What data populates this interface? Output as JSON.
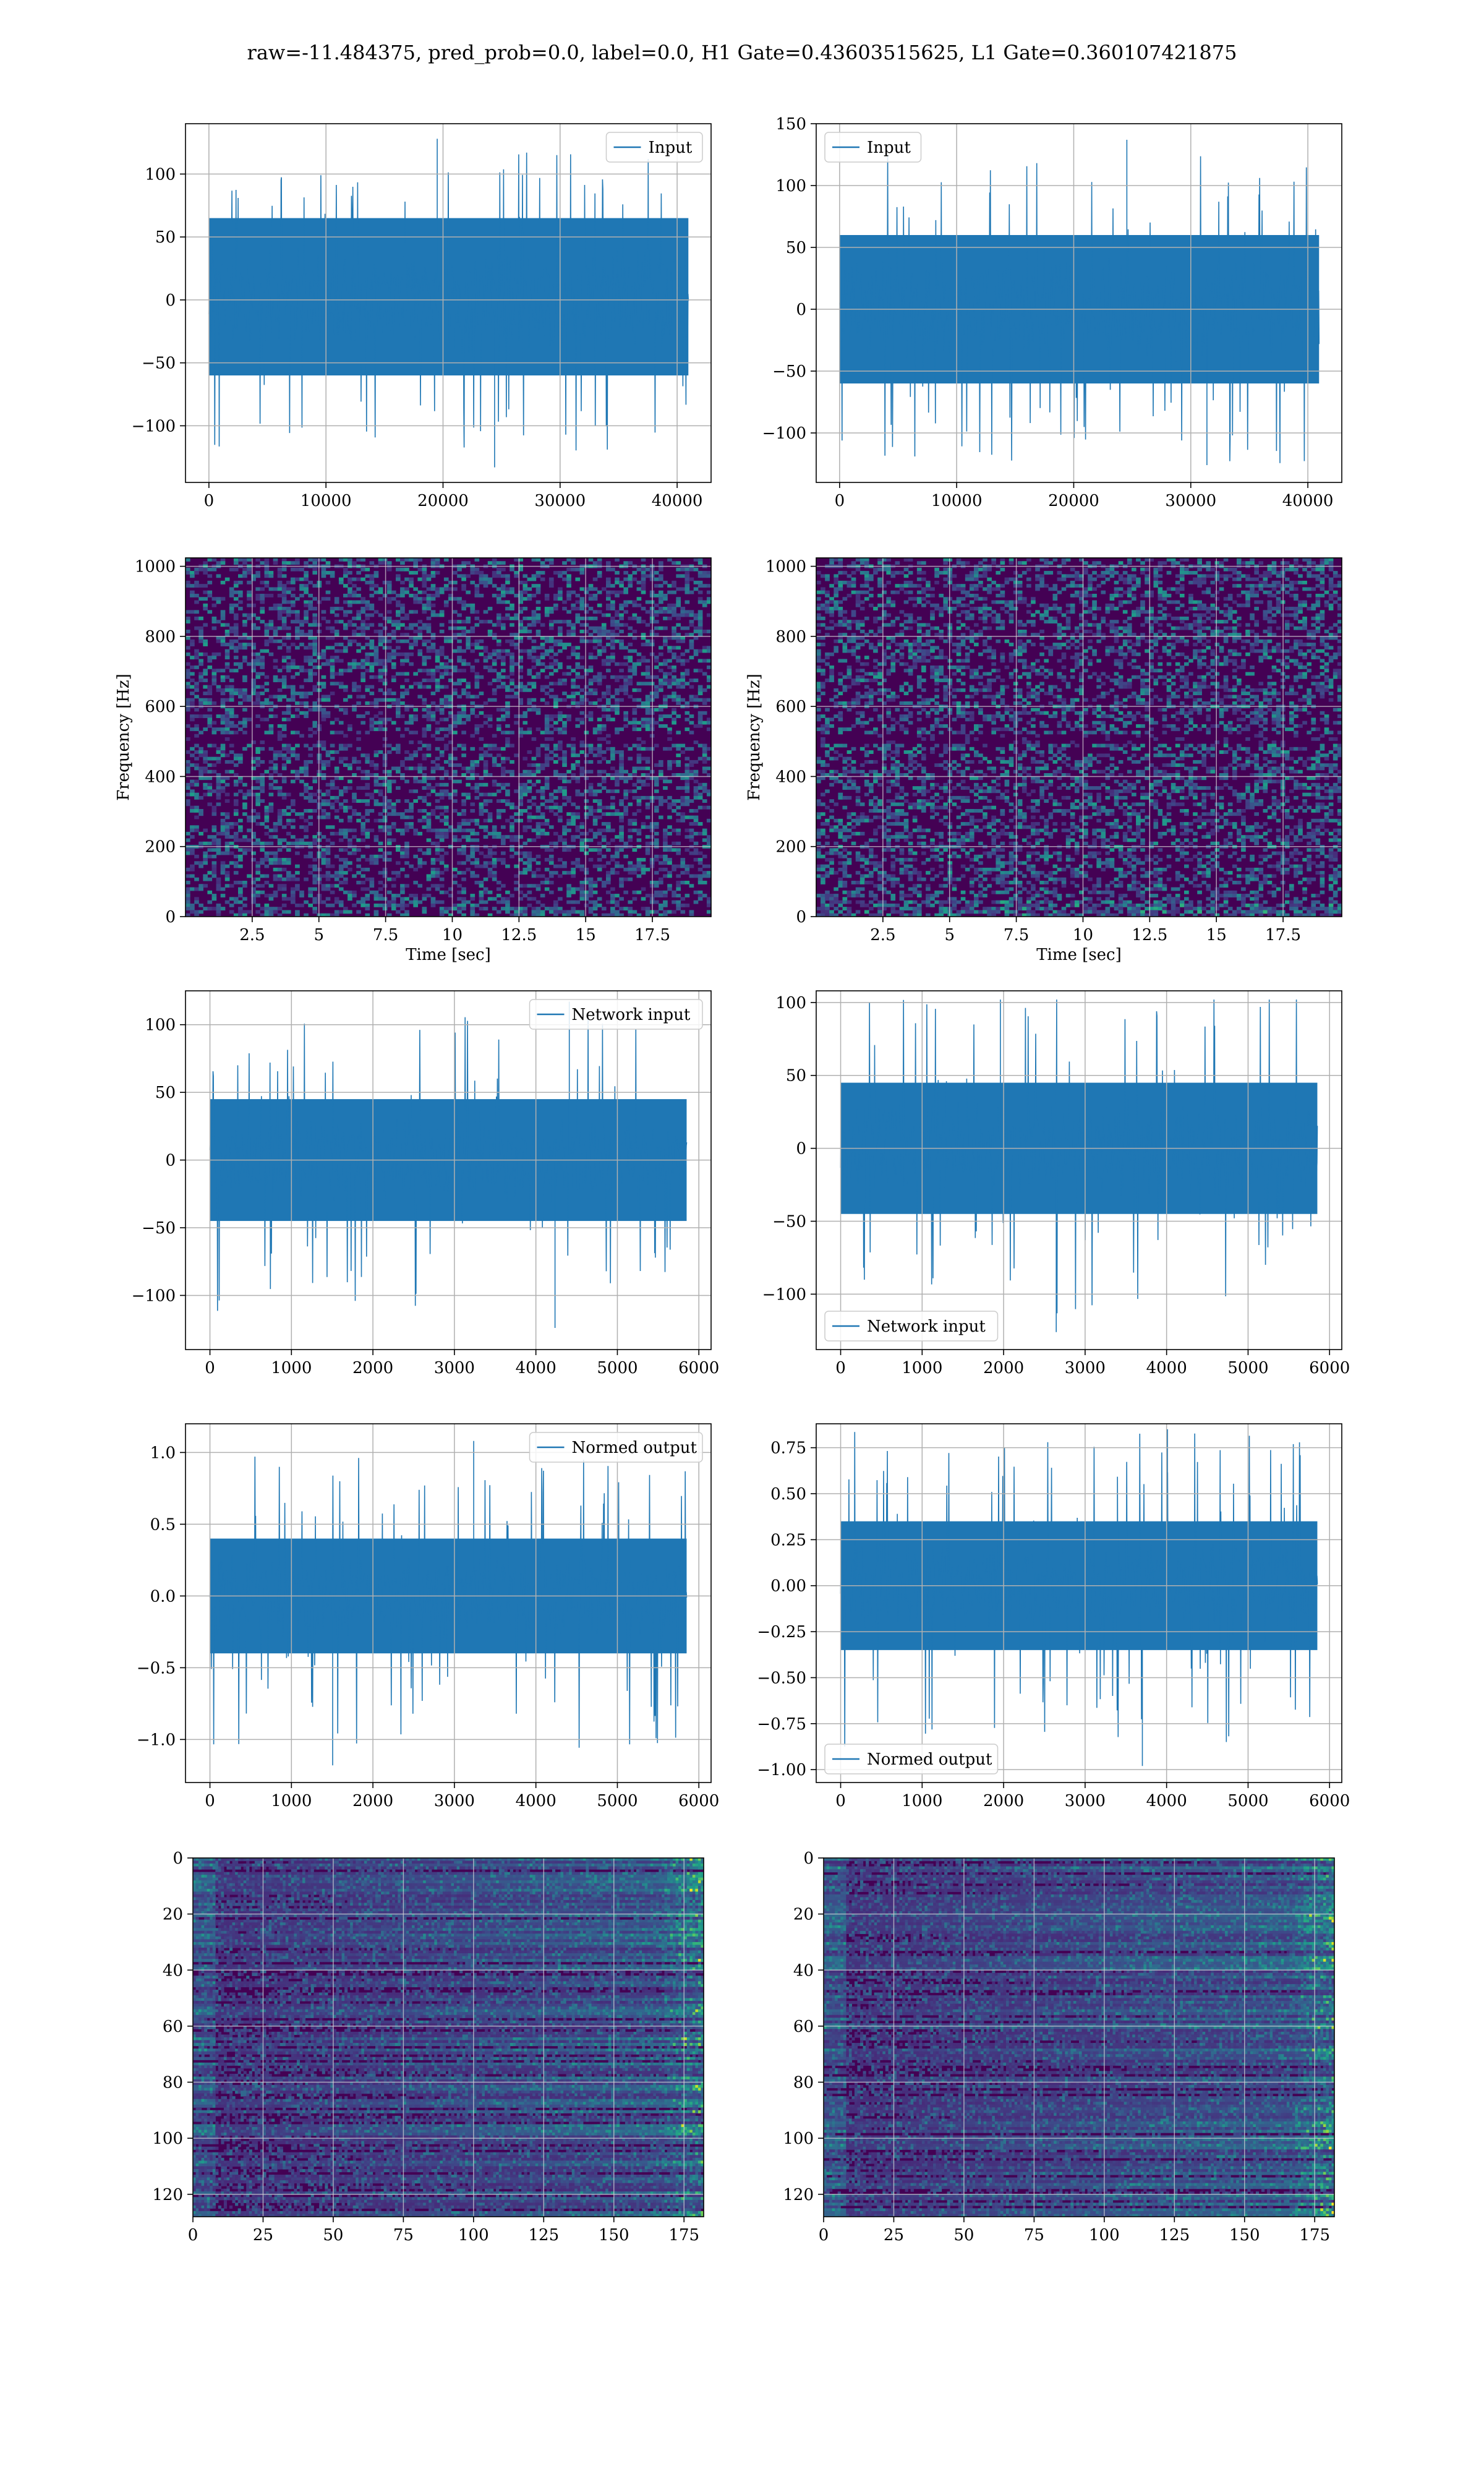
{
  "figure": {
    "title": "raw=-11.484375, pred_prob=0.0, label=0.0, H1 Gate=0.43603515625, L1 Gate=0.360107421875"
  },
  "colors": {
    "line": "#1f77b4",
    "grid": "#b0b0b0",
    "viridis": [
      "#440154",
      "#482878",
      "#3e4989",
      "#31688e",
      "#26828e",
      "#1f9e89",
      "#35b779",
      "#6ece58",
      "#b5de2b",
      "#fde725"
    ]
  },
  "chart_data": [
    {
      "id": "p11",
      "type": "line",
      "title": "",
      "xlabel": "",
      "ylabel": "",
      "xlim": [
        -2000,
        42900
      ],
      "ylim": [
        -145,
        140
      ],
      "xticks": [
        0,
        10000,
        20000,
        30000,
        40000
      ],
      "yticks": [
        -100,
        -50,
        0,
        50,
        100
      ],
      "series": [
        {
          "name": "Input",
          "n_samples": 40960,
          "x_range": [
            0,
            40960
          ],
          "typical_band": [
            -60,
            65
          ],
          "y_min": -133,
          "y_max": 128
        }
      ],
      "legend": "upper right",
      "grid": true
    },
    {
      "id": "p12",
      "type": "line",
      "title": "",
      "xlabel": "",
      "ylabel": "",
      "xlim": [
        -2000,
        42900
      ],
      "ylim": [
        -140,
        150
      ],
      "xticks": [
        0,
        10000,
        20000,
        30000,
        40000
      ],
      "yticks": [
        -100,
        -50,
        0,
        50,
        100,
        150
      ],
      "series": [
        {
          "name": "Input",
          "n_samples": 40960,
          "x_range": [
            0,
            40960
          ],
          "typical_band": [
            -60,
            60
          ],
          "y_min": -126,
          "y_max": 137
        }
      ],
      "legend": "upper left",
      "grid": true
    },
    {
      "id": "p21",
      "type": "heatmap",
      "title": "",
      "xlabel": "Time [sec]",
      "ylabel": "Frequency [Hz]",
      "xlim": [
        0,
        19.7
      ],
      "ylim": [
        0,
        1024
      ],
      "xticks": [
        2.5,
        5.0,
        7.5,
        10.0,
        12.5,
        15.0,
        17.5
      ],
      "yticks": [
        0,
        200,
        400,
        600,
        800,
        1000
      ],
      "grid": true,
      "colormap": "viridis"
    },
    {
      "id": "p22",
      "type": "heatmap",
      "title": "",
      "xlabel": "Time [sec]",
      "ylabel": "Frequency [Hz]",
      "xlim": [
        0,
        19.7
      ],
      "ylim": [
        0,
        1024
      ],
      "xticks": [
        2.5,
        5.0,
        7.5,
        10.0,
        12.5,
        15.0,
        17.5
      ],
      "yticks": [
        0,
        200,
        400,
        600,
        800,
        1000
      ],
      "grid": true,
      "colormap": "viridis"
    },
    {
      "id": "p31",
      "type": "line",
      "title": "",
      "xlabel": "",
      "ylabel": "",
      "xlim": [
        -300,
        6150
      ],
      "ylim": [
        -140,
        125
      ],
      "xticks": [
        0,
        1000,
        2000,
        3000,
        4000,
        5000,
        6000
      ],
      "yticks": [
        -100,
        -50,
        0,
        50,
        100
      ],
      "series": [
        {
          "name": "Network input",
          "n_samples": 5850,
          "x_range": [
            0,
            5850
          ],
          "typical_band": [
            -45,
            45
          ],
          "y_min": -124,
          "y_max": 117
        }
      ],
      "legend": "upper right",
      "grid": true
    },
    {
      "id": "p32",
      "type": "line",
      "title": "",
      "xlabel": "",
      "ylabel": "",
      "xlim": [
        -300,
        6150
      ],
      "ylim": [
        -138,
        108
      ],
      "xticks": [
        0,
        1000,
        2000,
        3000,
        4000,
        5000,
        6000
      ],
      "yticks": [
        -100,
        -50,
        0,
        50,
        100
      ],
      "series": [
        {
          "name": "Network input",
          "n_samples": 5850,
          "x_range": [
            0,
            5850
          ],
          "typical_band": [
            -45,
            45
          ],
          "y_min": -126,
          "y_max": 102
        }
      ],
      "legend": "lower left",
      "grid": true
    },
    {
      "id": "p41",
      "type": "line",
      "title": "",
      "xlabel": "",
      "ylabel": "",
      "xlim": [
        -300,
        6150
      ],
      "ylim": [
        -1.3,
        1.2
      ],
      "xticks": [
        0,
        1000,
        2000,
        3000,
        4000,
        5000,
        6000
      ],
      "yticks": [
        -1.0,
        -0.5,
        0.0,
        0.5,
        1.0
      ],
      "ytick_labels": [
        "−1.0",
        "−0.5",
        "0.0",
        "0.5",
        "1.0"
      ],
      "series": [
        {
          "name": "Normed output",
          "n_samples": 5850,
          "x_range": [
            0,
            5850
          ],
          "typical_band": [
            -0.4,
            0.4
          ],
          "y_min": -1.18,
          "y_max": 1.08
        }
      ],
      "legend": "upper right",
      "grid": true
    },
    {
      "id": "p42",
      "type": "line",
      "title": "",
      "xlabel": "",
      "ylabel": "",
      "xlim": [
        -300,
        6150
      ],
      "ylim": [
        -1.07,
        0.88
      ],
      "xticks": [
        0,
        1000,
        2000,
        3000,
        4000,
        5000,
        6000
      ],
      "yticks": [
        -1.0,
        -0.75,
        -0.5,
        -0.25,
        0.0,
        0.25,
        0.5,
        0.75
      ],
      "ytick_labels": [
        "−1.00",
        "−0.75",
        "−0.50",
        "−0.25",
        "0.00",
        "0.25",
        "0.50",
        "0.75"
      ],
      "series": [
        {
          "name": "Normed output",
          "n_samples": 5850,
          "x_range": [
            0,
            5850
          ],
          "typical_band": [
            -0.35,
            0.35
          ],
          "y_min": -0.98,
          "y_max": 0.85
        }
      ],
      "legend": "lower left",
      "grid": true
    },
    {
      "id": "p51",
      "type": "heatmap",
      "title": "",
      "xlabel": "",
      "ylabel": "",
      "xlim": [
        0,
        182
      ],
      "ylim": [
        128,
        0
      ],
      "xticks": [
        0,
        25,
        50,
        75,
        100,
        125,
        150,
        175
      ],
      "yticks": [
        0,
        20,
        40,
        60,
        80,
        100,
        120
      ],
      "grid": true,
      "colormap": "viridis"
    },
    {
      "id": "p52",
      "type": "heatmap",
      "title": "",
      "xlabel": "",
      "ylabel": "",
      "xlim": [
        0,
        182
      ],
      "ylim": [
        128,
        0
      ],
      "xticks": [
        0,
        25,
        50,
        75,
        100,
        125,
        150,
        175
      ],
      "yticks": [
        0,
        20,
        40,
        60,
        80,
        100,
        120
      ],
      "grid": true,
      "colormap": "viridis"
    }
  ]
}
